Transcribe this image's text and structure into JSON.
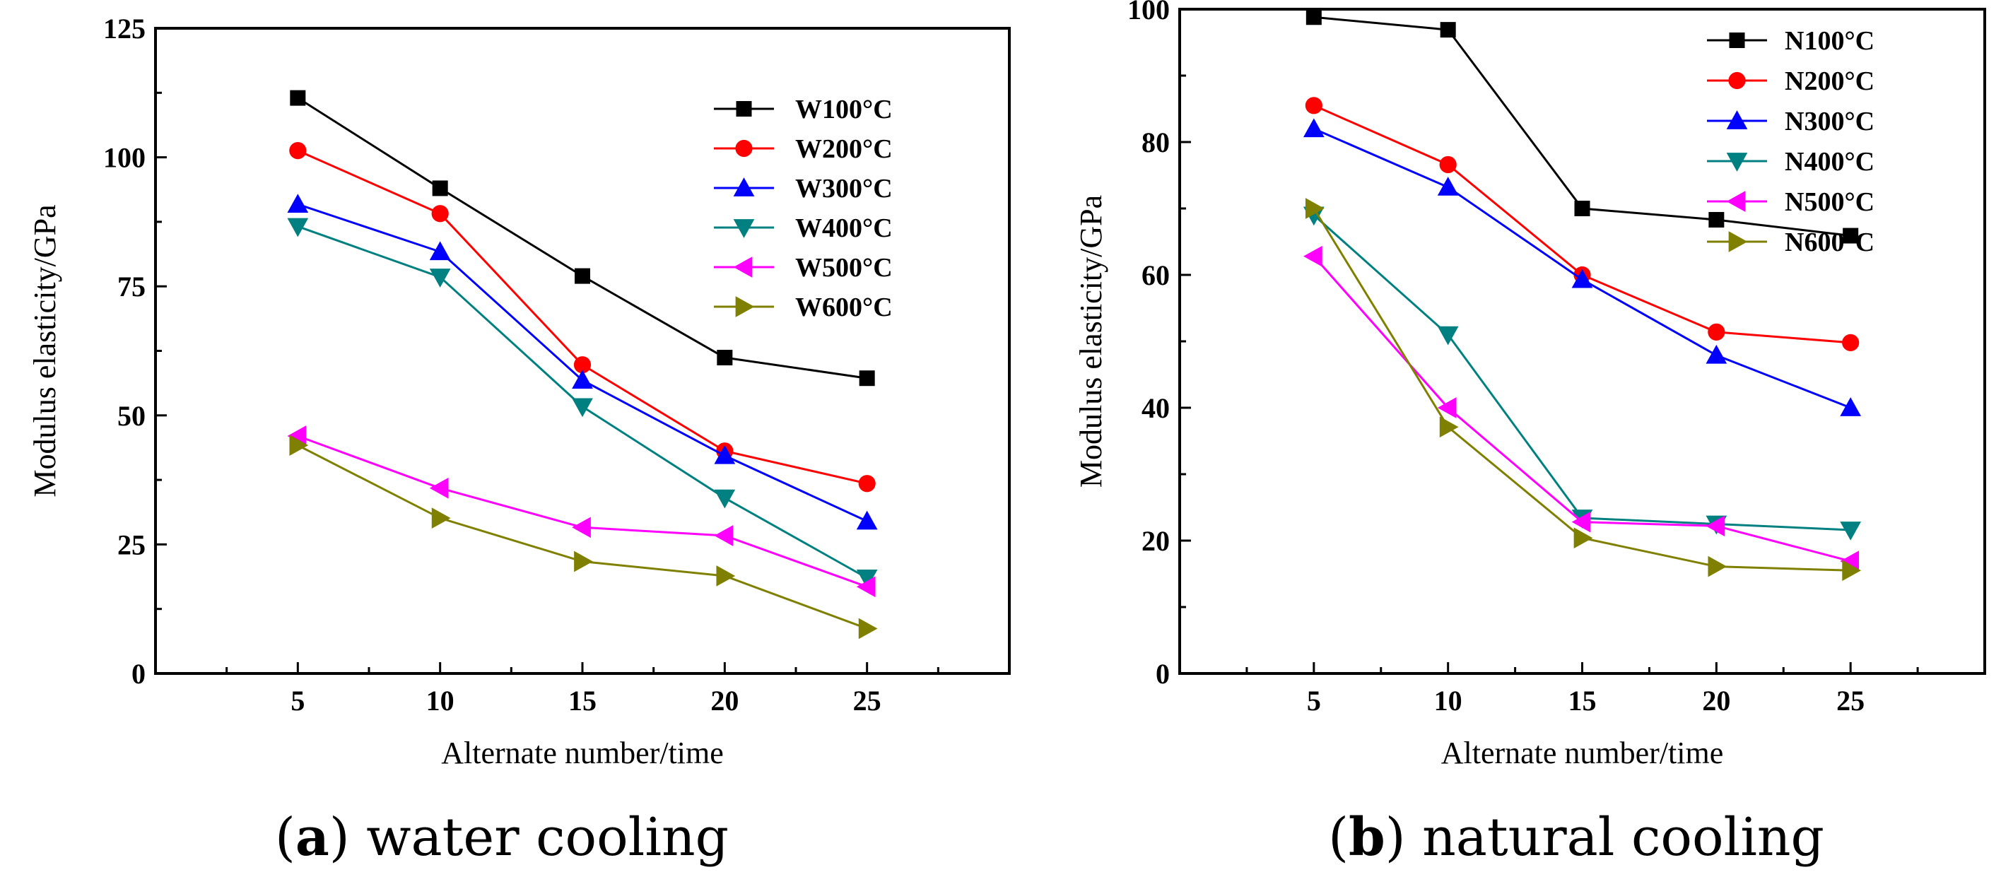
{
  "chart_data": [
    {
      "type": "line",
      "panel_key": "a",
      "caption_label": "a",
      "caption_text": "water cooling",
      "xlabel": "Alternate number/time",
      "ylabel": "Modulus elasticity/GPa",
      "x": [
        5,
        10,
        15,
        20,
        25
      ],
      "xlim": [
        0,
        30
      ],
      "ylim": [
        0,
        125
      ],
      "xticks": [
        5,
        10,
        15,
        20,
        25
      ],
      "yticks": [
        0,
        25,
        50,
        75,
        100,
        125
      ],
      "legend_position": "top-right",
      "series": [
        {
          "name": "W100°C",
          "color": "#000000",
          "marker": "square",
          "values": [
            111.5,
            94,
            77,
            61.2,
            57.2
          ]
        },
        {
          "name": "W200°C",
          "color": "#ff0000",
          "marker": "circle",
          "values": [
            101.3,
            89.1,
            59.8,
            43.1,
            36.8
          ]
        },
        {
          "name": "W300°C",
          "color": "#0000ff",
          "marker": "triangle-up",
          "values": [
            90.9,
            81.7,
            56.8,
            42.2,
            29.5
          ]
        },
        {
          "name": "W400°C",
          "color": "#008080",
          "marker": "triangle-down",
          "values": [
            86.6,
            76.8,
            51.7,
            34,
            18.5
          ]
        },
        {
          "name": "W500°C",
          "color": "#ff00ff",
          "marker": "triangle-left",
          "values": [
            46,
            35.9,
            28.3,
            26.7,
            16.8
          ]
        },
        {
          "name": "W600°C",
          "color": "#808000",
          "marker": "triangle-right",
          "values": [
            44.2,
            30.1,
            21.7,
            18.9,
            8.7
          ]
        }
      ]
    },
    {
      "type": "line",
      "panel_key": "b",
      "caption_label": "b",
      "caption_text": "natural cooling",
      "xlabel": "Alternate number/time",
      "ylabel": "Modulus elasticity/GPa",
      "x": [
        5,
        10,
        15,
        20,
        25
      ],
      "xlim": [
        0,
        30
      ],
      "ylim": [
        0,
        100
      ],
      "xticks": [
        5,
        10,
        15,
        20,
        25
      ],
      "yticks": [
        0,
        20,
        40,
        60,
        80,
        100
      ],
      "legend_position": "top-right",
      "series": [
        {
          "name": "N100°C",
          "color": "#000000",
          "marker": "square",
          "values": [
            98.8,
            96.9,
            70,
            68.3,
            65.9
          ]
        },
        {
          "name": "N200°C",
          "color": "#ff0000",
          "marker": "circle",
          "values": [
            85.5,
            76.6,
            60,
            51.4,
            49.8
          ]
        },
        {
          "name": "N300°C",
          "color": "#0000ff",
          "marker": "triangle-up",
          "values": [
            82,
            73.2,
            59.3,
            47.9,
            40
          ]
        },
        {
          "name": "N400°C",
          "color": "#008080",
          "marker": "triangle-down",
          "values": [
            69,
            51,
            23.4,
            22.5,
            21.6
          ]
        },
        {
          "name": "N500°C",
          "color": "#ff00ff",
          "marker": "triangle-left",
          "values": [
            62.8,
            40,
            22.8,
            22.2,
            16.9
          ]
        },
        {
          "name": "N600°C",
          "color": "#808000",
          "marker": "triangle-right",
          "values": [
            70,
            37.1,
            20.4,
            16.1,
            15.5
          ]
        }
      ]
    }
  ]
}
